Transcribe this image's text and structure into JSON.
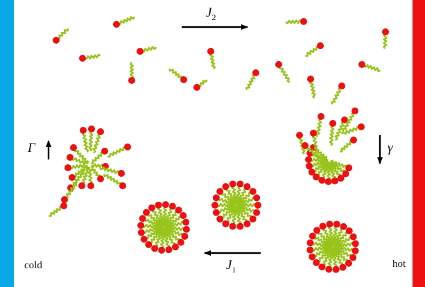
{
  "labels": {
    "cold": "cold",
    "hot": "hot",
    "j2_main": "J",
    "j2_sub": "2",
    "j1_main": "J",
    "j1_sub": "1",
    "gamma_upper": "Γ",
    "gamma_lower": "γ"
  },
  "colors": {
    "cold_wall": "#0aa8e6",
    "hot_wall": "#ee1111",
    "head": "#ee1111",
    "tail": "#99c41c",
    "arrow": "#000000"
  }
}
